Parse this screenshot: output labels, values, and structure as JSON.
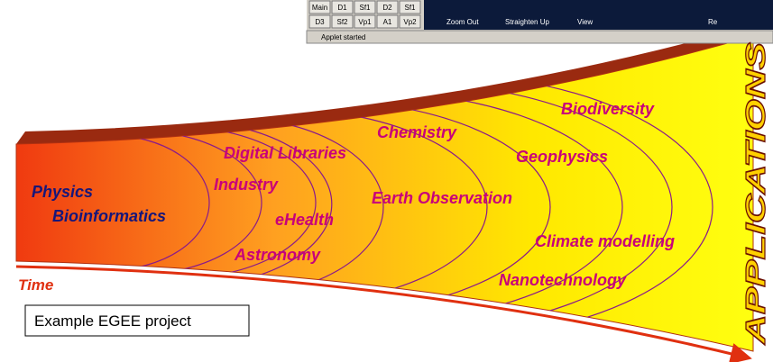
{
  "applet": {
    "buttons": [
      [
        "Main",
        "D1",
        "Sf1",
        "D2",
        "Sf1"
      ],
      [
        "D3",
        "Sf2",
        "Vp1",
        "A1",
        "Vp2"
      ]
    ],
    "toolbar": [
      "Zoom Out",
      "Straighten Up",
      "View",
      "Re"
    ],
    "status": "Applet started"
  },
  "diagram": {
    "left_labels": [
      "Physics",
      "Bioinformatics"
    ],
    "applications": [
      "Digital Libraries",
      "Industry",
      "eHealth",
      "Astronomy",
      "Chemistry",
      "Earth Observation",
      "Biodiversity",
      "Geophysics",
      "Climate modelling",
      "Nanotechnology"
    ],
    "time_label": "Time",
    "caption": "Example EGEE project",
    "side_title": "APPLICATIONS"
  }
}
